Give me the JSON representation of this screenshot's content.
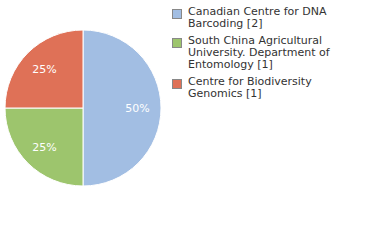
{
  "chart_data": {
    "type": "pie",
    "categories": [
      "Canadian Centre for DNA Barcoding [2]",
      "South China Agricultural University. Department of Entomology [1]",
      "Centre for Biodiversity Genomics [1]"
    ],
    "values": [
      50,
      25,
      25
    ],
    "value_labels": [
      "50%",
      "25%",
      "25%"
    ],
    "colors": [
      "#a2bee3",
      "#9dc56d",
      "#df7157"
    ],
    "data_labels": true,
    "legend": "right"
  }
}
